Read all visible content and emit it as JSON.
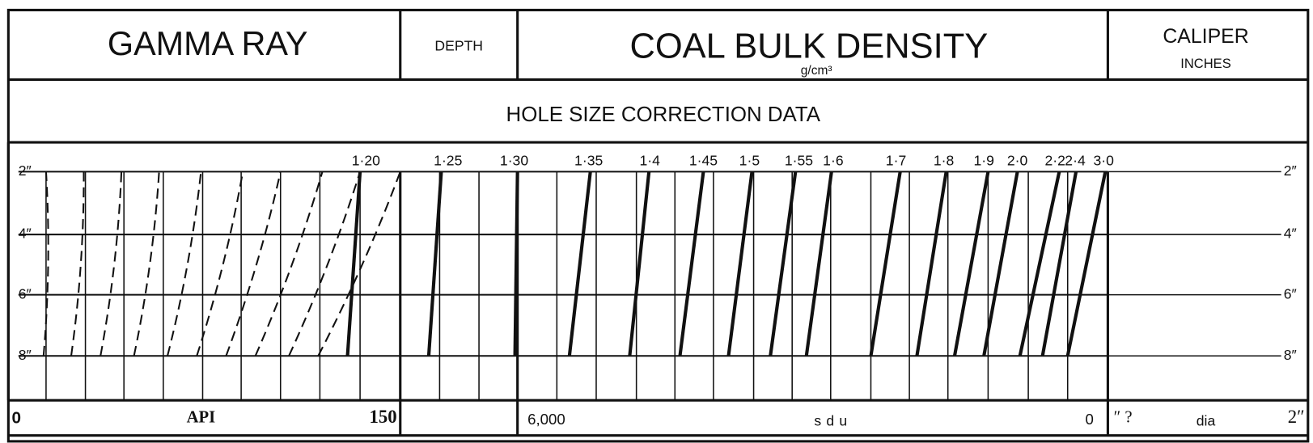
{
  "header": {
    "gamma_ray": "GAMMA RAY",
    "depth": "DEPTH",
    "density": "COAL BULK DENSITY",
    "density_unit": "g/cm³",
    "caliper": "CALIPER",
    "caliper_unit": "INCHES"
  },
  "section_title": "HOLE SIZE CORRECTION DATA",
  "hole_sizes": [
    "2″",
    "4″",
    "6″",
    "8″"
  ],
  "density_curves": [
    "1·20",
    "1·25",
    "1·30",
    "1·35",
    "1·4",
    "1·45",
    "1·5",
    "1·55",
    "1·6",
    "1·7",
    "1·8",
    "1·9",
    "2·0",
    "2·2",
    "2·4",
    "3·0"
  ],
  "footer": {
    "gamma_min": "0",
    "gamma_unit": "API",
    "gamma_max": "150",
    "density_left": "6,000",
    "density_unit": "sdu",
    "density_right": "0",
    "caliper_left": "″ ?",
    "caliper_unit": "dia",
    "caliper_right": "2″"
  }
}
